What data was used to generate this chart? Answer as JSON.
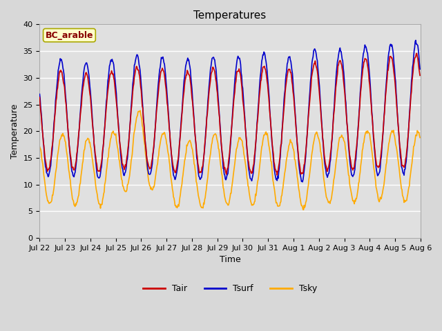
{
  "title": "Temperatures",
  "xlabel": "Time",
  "ylabel": "Temperature",
  "ylim": [
    0,
    40
  ],
  "yticks": [
    0,
    5,
    10,
    15,
    20,
    25,
    30,
    35,
    40
  ],
  "x_tick_labels": [
    "Jul 22",
    "Jul 23",
    "Jul 24",
    "Jul 25",
    "Jul 26",
    "Jul 27",
    "Jul 28",
    "Jul 29",
    "Jul 30",
    "Jul 31",
    "Aug 1",
    "Aug 2",
    "Aug 3",
    "Aug 4",
    "Aug 5",
    "Aug 6"
  ],
  "annotation_text": "BC_arable",
  "annotation_bg": "#ffffcc",
  "annotation_edge": "#aaa800",
  "annotation_text_color": "#880000",
  "line_colors": {
    "Tair": "#cc0000",
    "Tsurf": "#0000cc",
    "Tsky": "#ffaa00"
  },
  "line_widths": {
    "Tair": 1.2,
    "Tsurf": 1.2,
    "Tsky": 1.2
  },
  "plot_bg_color": "#e0e0e0",
  "fig_bg_color": "#d8d8d8",
  "grid_color": "#ffffff",
  "n_days": 15,
  "samples_per_day": 48,
  "title_fontsize": 11,
  "axis_label_fontsize": 9,
  "tick_label_fontsize": 8
}
